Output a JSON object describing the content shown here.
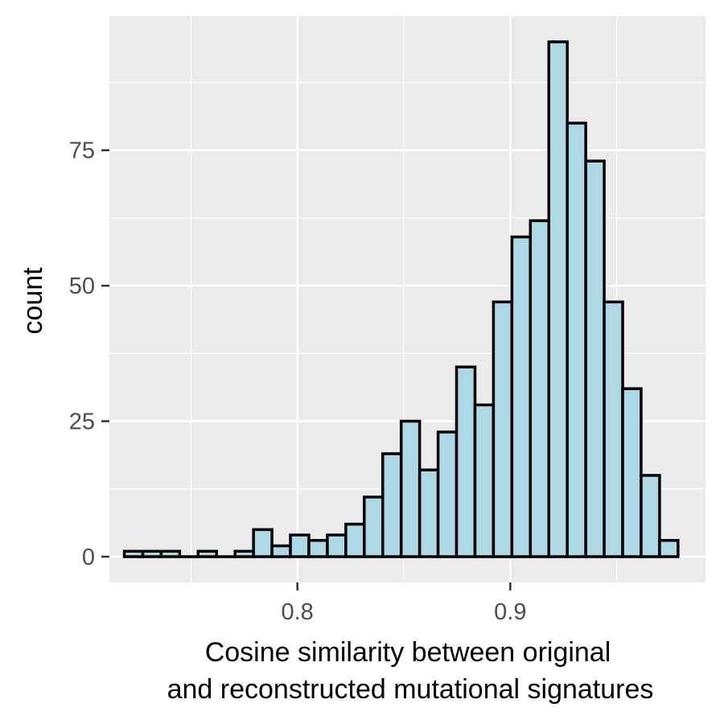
{
  "chart_data": {
    "type": "bar",
    "subtype": "histogram",
    "title": "",
    "xlabel_lines": [
      "Cosine similarity between original",
      "and reconstructed mutational signatures"
    ],
    "ylabel": "count",
    "x_ticks": [
      {
        "value": 0.8,
        "label": "0.8"
      },
      {
        "value": 0.9,
        "label": "0.9"
      }
    ],
    "y_ticks": [
      {
        "value": 0,
        "label": "0"
      },
      {
        "value": 25,
        "label": "25"
      },
      {
        "value": 50,
        "label": "50"
      },
      {
        "value": 75,
        "label": "75"
      }
    ],
    "xlim": [
      0.7117,
      0.9917
    ],
    "ylim": [
      -4.75,
      99.75
    ],
    "x_minor_grid": [
      0.75,
      0.85,
      0.95
    ],
    "y_minor_grid": [
      12.5,
      37.5,
      62.5,
      87.5
    ],
    "grid": true,
    "bin_width": 0.00867,
    "bin_start": 0.7187,
    "counts": [
      1,
      1,
      1,
      0,
      1,
      0,
      1,
      5,
      2,
      4,
      3,
      4,
      6,
      11,
      19,
      25,
      16,
      23,
      35,
      28,
      47,
      59,
      62,
      95,
      80,
      73,
      47,
      31,
      15,
      3
    ],
    "colors": {
      "bar_fill": "#add8e6",
      "bar_stroke": "#000000",
      "panel_background": "#ebebeb",
      "grid": "#ffffff",
      "tick_text": "#4d4d4d",
      "title_text": "#000000"
    }
  }
}
